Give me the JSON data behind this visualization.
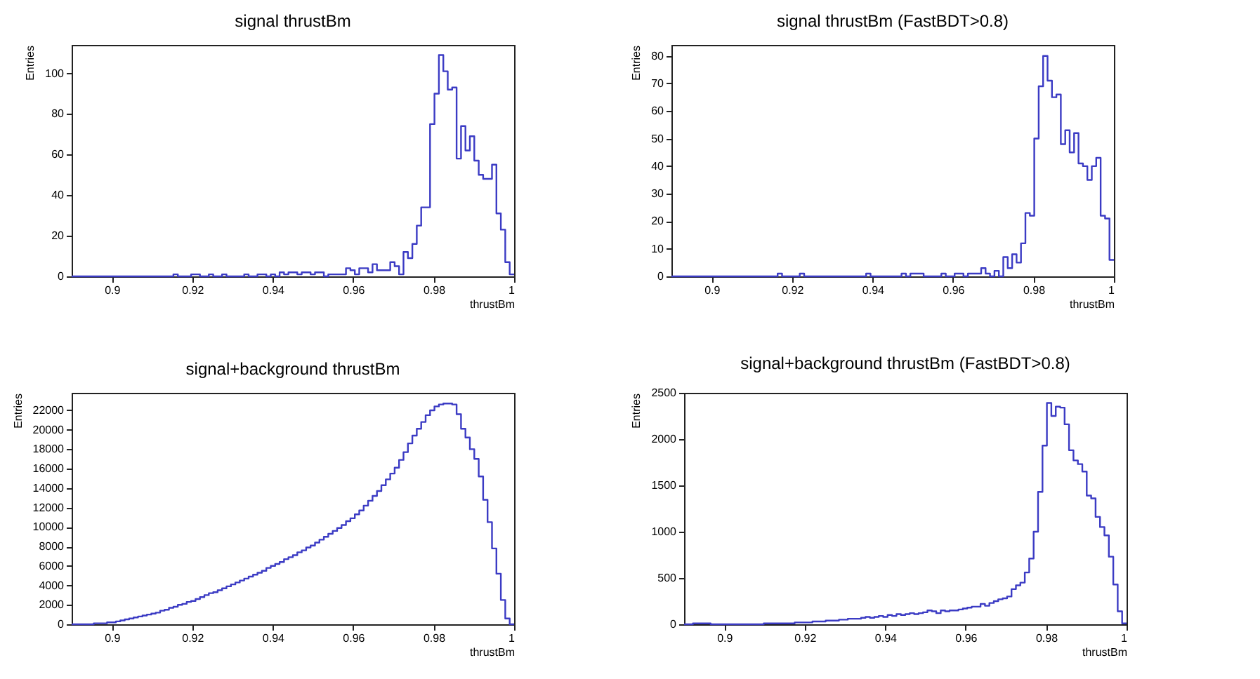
{
  "chart_data": [
    {
      "type": "histogram",
      "title": "signal thrustBm",
      "xlabel": "thrustBm",
      "ylabel": "Entries",
      "color": "#3b3bc4",
      "grid": false,
      "xlim": [
        0.89,
        1
      ],
      "xticks": [
        0.9,
        0.92,
        0.94,
        0.96,
        0.98,
        1
      ],
      "ylim": [
        0,
        114
      ],
      "yticks": [
        0,
        20,
        40,
        60,
        80,
        100
      ],
      "bins": [
        0.89,
        0.8911,
        0.8922,
        0.8933,
        0.8944,
        0.8955,
        0.8966,
        0.8977,
        0.8988,
        0.8999,
        0.901,
        0.9021,
        0.9032,
        0.9043,
        0.9054,
        0.9065,
        0.9076,
        0.9087,
        0.9098,
        0.9109,
        0.912,
        0.9131,
        0.9142,
        0.9153,
        0.9164,
        0.9175,
        0.9186,
        0.9197,
        0.9208,
        0.9219,
        0.923,
        0.9241,
        0.9252,
        0.9263,
        0.9274,
        0.9285,
        0.9296,
        0.9307,
        0.9318,
        0.9329,
        0.934,
        0.9351,
        0.9362,
        0.9373,
        0.9384,
        0.9395,
        0.9406,
        0.9417,
        0.9428,
        0.9439,
        0.945,
        0.9461,
        0.9472,
        0.9483,
        0.9494,
        0.9505,
        0.9516,
        0.9527,
        0.9538,
        0.9549,
        0.956,
        0.9571,
        0.9582,
        0.9593,
        0.9604,
        0.9615,
        0.9626,
        0.9637,
        0.9648,
        0.9659,
        0.967,
        0.9681,
        0.9692,
        0.9703,
        0.9714,
        0.9725,
        0.9736,
        0.9747,
        0.9758,
        0.9769,
        0.978,
        0.9791,
        0.9802,
        0.9813,
        0.9824,
        0.9835,
        0.9846,
        0.9857,
        0.9868,
        0.9879,
        0.989,
        0.9901,
        0.9912,
        0.9923,
        0.9934,
        0.9945,
        0.9956,
        0.9967,
        0.9978,
        0.9989,
        1.0
      ],
      "values": [
        0,
        0,
        0,
        0,
        0,
        0,
        0,
        0,
        0,
        0,
        0,
        0,
        0,
        0,
        0,
        0,
        0,
        0,
        0,
        0,
        0,
        0,
        0,
        1,
        0,
        0,
        0,
        1,
        1,
        0,
        0,
        1,
        0,
        0,
        1,
        0,
        0,
        0,
        0,
        1,
        0,
        0,
        1,
        1,
        0,
        1,
        0,
        2,
        1,
        2,
        2,
        1,
        2,
        2,
        1,
        2,
        2,
        0,
        1,
        1,
        1,
        1,
        4,
        3,
        1,
        4,
        4,
        2,
        6,
        3,
        3,
        3,
        7,
        5,
        1,
        12,
        9,
        16,
        25,
        34,
        34,
        75,
        90,
        109,
        101,
        92,
        93,
        58,
        74,
        62,
        69,
        57,
        50,
        48,
        48,
        55,
        31,
        23,
        7,
        1
      ]
    },
    {
      "type": "histogram",
      "title": "signal thrustBm (FastBDT>0.8)",
      "xlabel": "thrustBm",
      "ylabel": "Entries",
      "color": "#3b3bc4",
      "grid": false,
      "xlim": [
        0.89,
        1
      ],
      "xticks": [
        0.9,
        0.92,
        0.94,
        0.96,
        0.98,
        1
      ],
      "ylim": [
        0,
        84
      ],
      "yticks": [
        0,
        10,
        20,
        30,
        40,
        50,
        60,
        70,
        80
      ],
      "bins": [
        0.89,
        0.8911,
        0.8922,
        0.8933,
        0.8944,
        0.8955,
        0.8966,
        0.8977,
        0.8988,
        0.8999,
        0.901,
        0.9021,
        0.9032,
        0.9043,
        0.9054,
        0.9065,
        0.9076,
        0.9087,
        0.9098,
        0.9109,
        0.912,
        0.9131,
        0.9142,
        0.9153,
        0.9164,
        0.9175,
        0.9186,
        0.9197,
        0.9208,
        0.9219,
        0.923,
        0.9241,
        0.9252,
        0.9263,
        0.9274,
        0.9285,
        0.9296,
        0.9307,
        0.9318,
        0.9329,
        0.934,
        0.9351,
        0.9362,
        0.9373,
        0.9384,
        0.9395,
        0.9406,
        0.9417,
        0.9428,
        0.9439,
        0.945,
        0.9461,
        0.9472,
        0.9483,
        0.9494,
        0.9505,
        0.9516,
        0.9527,
        0.9538,
        0.9549,
        0.956,
        0.9571,
        0.9582,
        0.9593,
        0.9604,
        0.9615,
        0.9626,
        0.9637,
        0.9648,
        0.9659,
        0.967,
        0.9681,
        0.9692,
        0.9703,
        0.9714,
        0.9725,
        0.9736,
        0.9747,
        0.9758,
        0.9769,
        0.978,
        0.9791,
        0.9802,
        0.9813,
        0.9824,
        0.9835,
        0.9846,
        0.9857,
        0.9868,
        0.9879,
        0.989,
        0.9901,
        0.9912,
        0.9923,
        0.9934,
        0.9945,
        0.9956,
        0.9967,
        0.9978,
        0.9989,
        1.0
      ],
      "values": [
        0,
        0,
        0,
        0,
        0,
        0,
        0,
        0,
        0,
        0,
        0,
        0,
        0,
        0,
        0,
        0,
        0,
        0,
        0,
        0,
        0,
        0,
        0,
        0,
        1,
        0,
        0,
        0,
        0,
        1,
        0,
        0,
        0,
        0,
        0,
        0,
        0,
        0,
        0,
        0,
        0,
        0,
        0,
        0,
        1,
        0,
        0,
        0,
        0,
        0,
        0,
        0,
        1,
        0,
        1,
        1,
        1,
        0,
        0,
        0,
        0,
        1,
        0,
        0,
        1,
        1,
        0,
        1,
        1,
        1,
        3,
        1,
        0,
        2,
        0,
        7,
        3,
        8,
        5,
        12,
        23,
        22,
        50,
        69,
        80,
        71,
        65,
        66,
        48,
        53,
        45,
        52,
        41,
        40,
        35,
        40,
        43,
        22,
        21,
        6
      ]
    },
    {
      "type": "histogram",
      "title": "signal+background thrustBm",
      "xlabel": "thrustBm",
      "ylabel": "Entries",
      "color": "#3b3bc4",
      "grid": false,
      "xlim": [
        0.89,
        1
      ],
      "xticks": [
        0.9,
        0.92,
        0.94,
        0.96,
        0.98,
        1
      ],
      "ylim": [
        0,
        23800
      ],
      "yticks": [
        0,
        2000,
        4000,
        6000,
        8000,
        10000,
        12000,
        14000,
        16000,
        18000,
        20000,
        22000
      ],
      "bins": [
        0.89,
        0.8911,
        0.8922,
        0.8933,
        0.8944,
        0.8955,
        0.8966,
        0.8977,
        0.8988,
        0.8999,
        0.901,
        0.9021,
        0.9032,
        0.9043,
        0.9054,
        0.9065,
        0.9076,
        0.9087,
        0.9098,
        0.9109,
        0.912,
        0.9131,
        0.9142,
        0.9153,
        0.9164,
        0.9175,
        0.9186,
        0.9197,
        0.9208,
        0.9219,
        0.923,
        0.9241,
        0.9252,
        0.9263,
        0.9274,
        0.9285,
        0.9296,
        0.9307,
        0.9318,
        0.9329,
        0.934,
        0.9351,
        0.9362,
        0.9373,
        0.9384,
        0.9395,
        0.9406,
        0.9417,
        0.9428,
        0.9439,
        0.945,
        0.9461,
        0.9472,
        0.9483,
        0.9494,
        0.9505,
        0.9516,
        0.9527,
        0.9538,
        0.9549,
        0.956,
        0.9571,
        0.9582,
        0.9593,
        0.9604,
        0.9615,
        0.9626,
        0.9637,
        0.9648,
        0.9659,
        0.967,
        0.9681,
        0.9692,
        0.9703,
        0.9714,
        0.9725,
        0.9736,
        0.9747,
        0.9758,
        0.9769,
        0.978,
        0.9791,
        0.9802,
        0.9813,
        0.9824,
        0.9835,
        0.9846,
        0.9857,
        0.9868,
        0.9879,
        0.989,
        0.9901,
        0.9912,
        0.9923,
        0.9934,
        0.9945,
        0.9956,
        0.9967,
        0.9978,
        0.9989,
        1.0
      ],
      "values": [
        0,
        0,
        0,
        0,
        0,
        100,
        100,
        100,
        200,
        200,
        300,
        400,
        500,
        600,
        700,
        800,
        900,
        1000,
        1100,
        1200,
        1400,
        1500,
        1700,
        1800,
        2000,
        2100,
        2300,
        2400,
        2600,
        2800,
        3000,
        3200,
        3300,
        3500,
        3700,
        3900,
        4100,
        4300,
        4500,
        4700,
        4900,
        5100,
        5300,
        5500,
        5800,
        6000,
        6200,
        6400,
        6700,
        6900,
        7100,
        7400,
        7600,
        7900,
        8100,
        8400,
        8700,
        9000,
        9300,
        9600,
        9900,
        10200,
        10600,
        10900,
        11300,
        11700,
        12200,
        12700,
        13200,
        13700,
        14300,
        14900,
        15500,
        16100,
        16900,
        17700,
        18600,
        19400,
        20100,
        20800,
        21500,
        22000,
        22400,
        22600,
        22700,
        22700,
        22600,
        21600,
        20100,
        19200,
        18000,
        17000,
        15200,
        12800,
        10500,
        7800,
        5200,
        2500,
        600,
        0
      ]
    },
    {
      "type": "histogram",
      "title": "signal+background thrustBm (FastBDT>0.8)",
      "xlabel": "thrustBm",
      "ylabel": "Entries",
      "color": "#3b3bc4",
      "grid": false,
      "xlim": [
        0.89,
        1
      ],
      "xticks": [
        0.9,
        0.92,
        0.94,
        0.96,
        0.98,
        1
      ],
      "ylim": [
        0,
        2500
      ],
      "yticks": [
        0,
        500,
        1000,
        1500,
        2000,
        2500
      ],
      "bins": [
        0.89,
        0.8911,
        0.8922,
        0.8933,
        0.8944,
        0.8955,
        0.8966,
        0.8977,
        0.8988,
        0.8999,
        0.901,
        0.9021,
        0.9032,
        0.9043,
        0.9054,
        0.9065,
        0.9076,
        0.9087,
        0.9098,
        0.9109,
        0.912,
        0.9131,
        0.9142,
        0.9153,
        0.9164,
        0.9175,
        0.9186,
        0.9197,
        0.9208,
        0.9219,
        0.923,
        0.9241,
        0.9252,
        0.9263,
        0.9274,
        0.9285,
        0.9296,
        0.9307,
        0.9318,
        0.9329,
        0.934,
        0.9351,
        0.9362,
        0.9373,
        0.9384,
        0.9395,
        0.9406,
        0.9417,
        0.9428,
        0.9439,
        0.945,
        0.9461,
        0.9472,
        0.9483,
        0.9494,
        0.9505,
        0.9516,
        0.9527,
        0.9538,
        0.9549,
        0.956,
        0.9571,
        0.9582,
        0.9593,
        0.9604,
        0.9615,
        0.9626,
        0.9637,
        0.9648,
        0.9659,
        0.967,
        0.9681,
        0.9692,
        0.9703,
        0.9714,
        0.9725,
        0.9736,
        0.9747,
        0.9758,
        0.9769,
        0.978,
        0.9791,
        0.9802,
        0.9813,
        0.9824,
        0.9835,
        0.9846,
        0.9857,
        0.9868,
        0.9879,
        0.989,
        0.9901,
        0.9912,
        0.9923,
        0.9934,
        0.9945,
        0.9956,
        0.9967,
        0.9978,
        0.9989,
        1.0
      ],
      "values": [
        0,
        0,
        10,
        10,
        10,
        10,
        0,
        0,
        0,
        0,
        0,
        0,
        0,
        0,
        0,
        0,
        0,
        0,
        10,
        10,
        10,
        10,
        10,
        10,
        10,
        20,
        20,
        20,
        20,
        30,
        30,
        30,
        40,
        40,
        40,
        50,
        50,
        60,
        60,
        60,
        70,
        80,
        70,
        80,
        90,
        80,
        100,
        90,
        110,
        100,
        110,
        120,
        110,
        120,
        130,
        150,
        140,
        120,
        150,
        140,
        150,
        150,
        160,
        170,
        180,
        190,
        190,
        220,
        200,
        230,
        250,
        270,
        280,
        300,
        380,
        420,
        450,
        560,
        710,
        1000,
        1430,
        1930,
        2390,
        2250,
        2350,
        2340,
        2160,
        1880,
        1770,
        1730,
        1650,
        1390,
        1360,
        1160,
        1050,
        960,
        730,
        430,
        140,
        10
      ]
    }
  ]
}
